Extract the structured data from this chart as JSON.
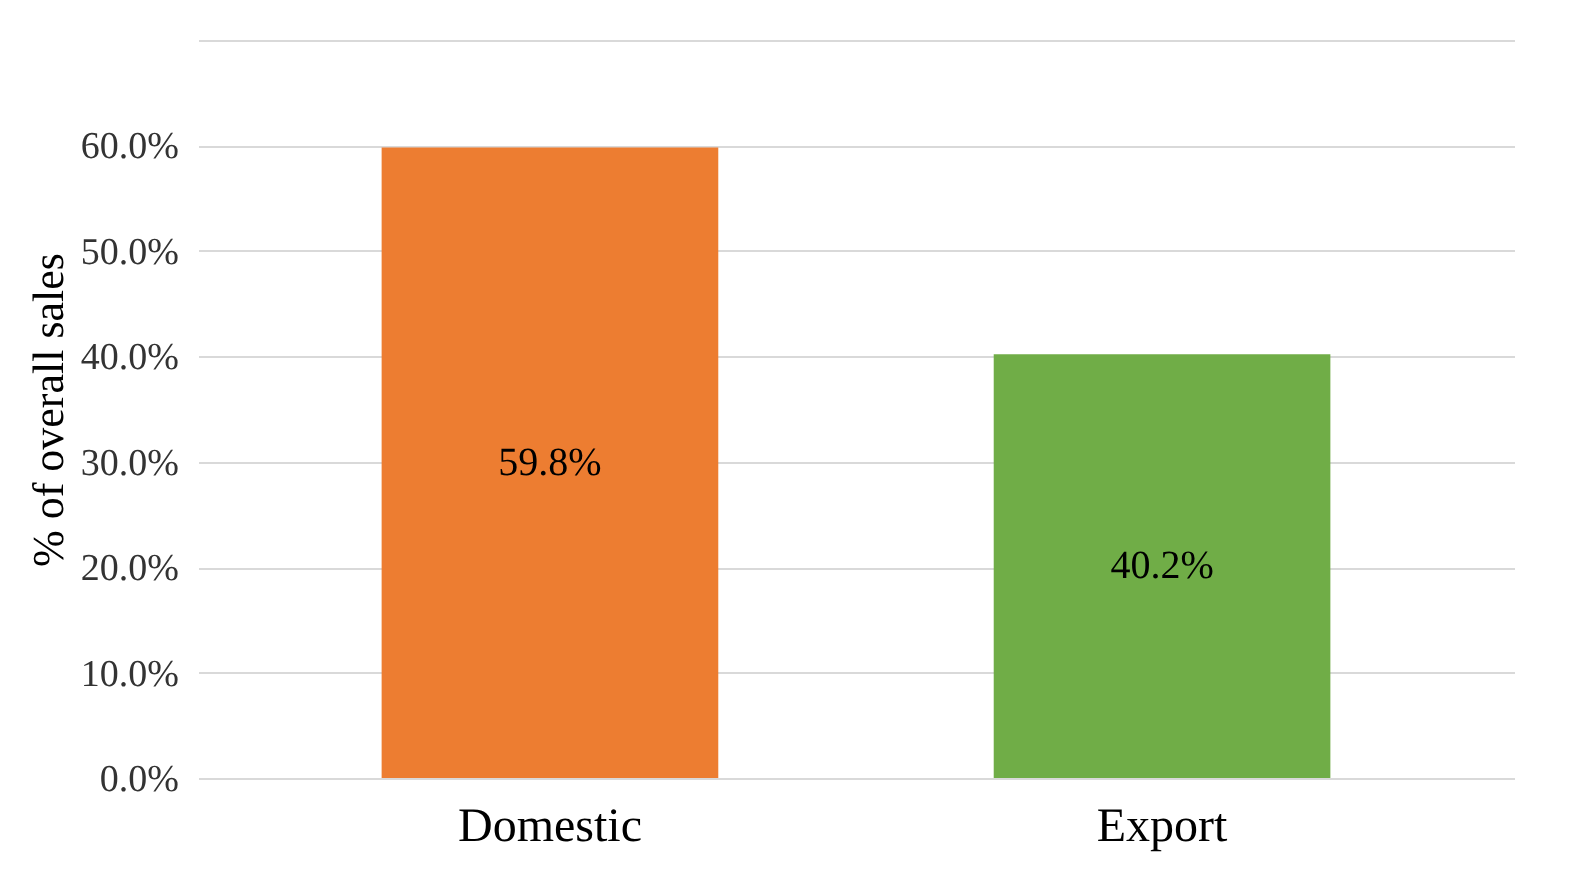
{
  "chart_data": {
    "type": "bar",
    "ylabel": "% of overall sales",
    "categories": [
      "Domestic",
      "Export"
    ],
    "values": [
      59.8,
      40.2
    ],
    "colors": [
      "#ed7d31",
      "#70ad47"
    ],
    "value_labels": [
      "59.8%",
      "40.2%"
    ],
    "ylim": [
      0,
      70
    ],
    "yticks": [
      {
        "value": 0,
        "label": "0.0%"
      },
      {
        "value": 10,
        "label": "10.0%"
      },
      {
        "value": 20,
        "label": "20.0%"
      },
      {
        "value": 30,
        "label": "30.0%"
      },
      {
        "value": 40,
        "label": "40.0%"
      },
      {
        "value": 50,
        "label": "50.0%"
      },
      {
        "value": 60,
        "label": "60.0%"
      },
      {
        "value": 70,
        "label": null
      }
    ],
    "grid": "y"
  }
}
